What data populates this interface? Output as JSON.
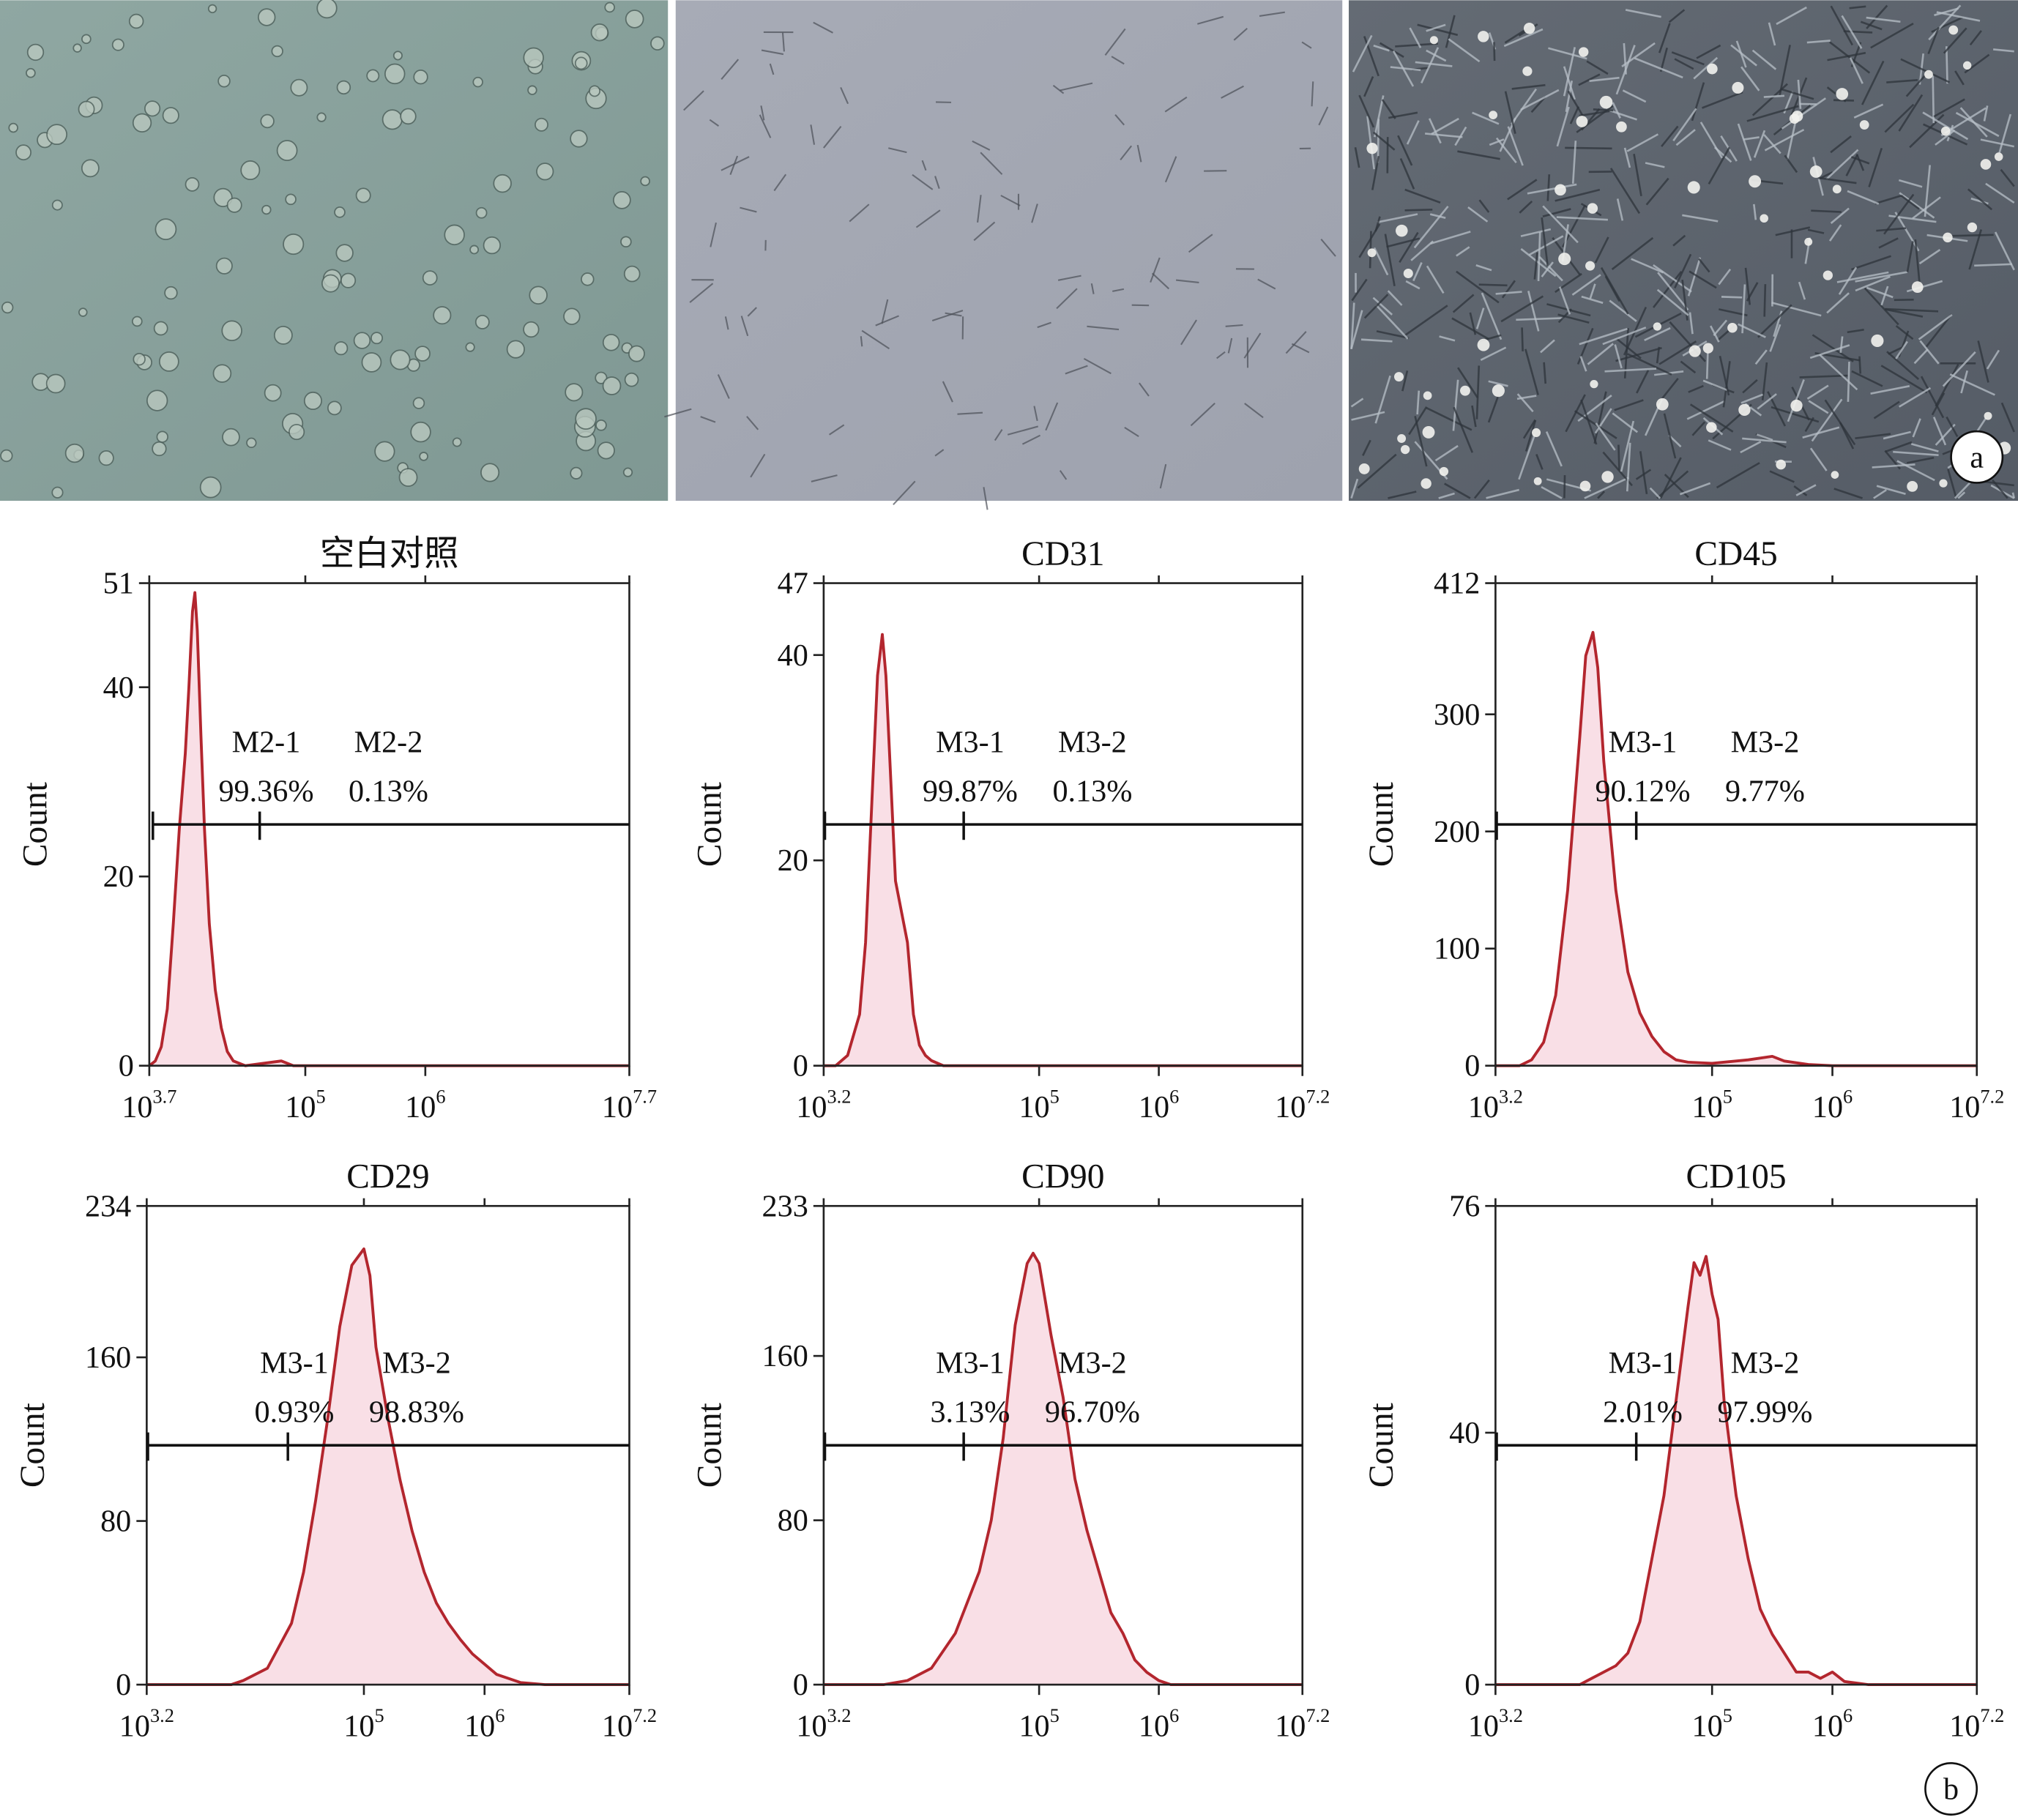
{
  "panel_labels": [
    "a",
    "b"
  ],
  "chart_data": [
    {
      "type": "area",
      "title": "空白对照",
      "ylabel": "Count",
      "color": "#b3262e",
      "fill": "#f9dfe6",
      "xlim": [
        3.7,
        7.7
      ],
      "xticks": [
        {
          "value": 3.7,
          "label": "10",
          "sup": "3.7"
        },
        {
          "value": 5,
          "label": "10",
          "sup": "5"
        },
        {
          "value": 6,
          "label": "10",
          "sup": "6"
        },
        {
          "value": 7.7,
          "label": "10",
          "sup": "7.7"
        }
      ],
      "ylim": [
        0,
        51
      ],
      "yticks": [
        0,
        20,
        40,
        51
      ],
      "x": [
        3.7,
        3.75,
        3.8,
        3.85,
        3.9,
        3.95,
        4.0,
        4.03,
        4.06,
        4.08,
        4.1,
        4.13,
        4.16,
        4.2,
        4.25,
        4.3,
        4.35,
        4.4,
        4.5,
        4.8,
        4.9,
        7.7
      ],
      "values": [
        0,
        0.5,
        2,
        6,
        15,
        25,
        33,
        40,
        48,
        50,
        46,
        35,
        25,
        15,
        8,
        4,
        1.5,
        0.5,
        0,
        0.5,
        0,
        0
      ],
      "gates": [
        {
          "name": "M2-1",
          "value": 99.36,
          "value_label": "99.36%",
          "range": [
            3.73,
            4.62
          ]
        },
        {
          "name": "M2-2",
          "value": 0.13,
          "value_label": "0.13%",
          "range": [
            4.62,
            7.7
          ]
        }
      ]
    },
    {
      "type": "area",
      "title": "CD31",
      "ylabel": "Count",
      "color": "#b3262e",
      "fill": "#f9dfe6",
      "xlim": [
        3.2,
        7.2
      ],
      "xticks": [
        {
          "value": 3.2,
          "label": "10",
          "sup": "3.2"
        },
        {
          "value": 5,
          "label": "10",
          "sup": "5"
        },
        {
          "value": 6,
          "label": "10",
          "sup": "6"
        },
        {
          "value": 7.2,
          "label": "10",
          "sup": "7.2"
        }
      ],
      "ylim": [
        0,
        47
      ],
      "yticks": [
        0,
        20,
        40,
        47
      ],
      "x": [
        3.2,
        3.3,
        3.4,
        3.5,
        3.55,
        3.6,
        3.65,
        3.69,
        3.72,
        3.76,
        3.8,
        3.85,
        3.9,
        3.95,
        4.0,
        4.05,
        4.1,
        4.2,
        7.2
      ],
      "values": [
        0,
        0,
        1,
        5,
        12,
        25,
        38,
        42,
        38,
        28,
        18,
        15,
        12,
        5,
        2,
        1,
        0.5,
        0,
        0
      ],
      "gates": [
        {
          "name": "M3-1",
          "value": 99.87,
          "value_label": "99.87%",
          "range": [
            3.21,
            4.37
          ]
        },
        {
          "name": "M3-2",
          "value": 0.13,
          "value_label": "0.13%",
          "range": [
            4.37,
            7.2
          ]
        }
      ]
    },
    {
      "type": "area",
      "title": "CD45",
      "ylabel": "Count",
      "color": "#b3262e",
      "fill": "#f9dfe6",
      "xlim": [
        3.2,
        7.2
      ],
      "xticks": [
        {
          "value": 3.2,
          "label": "10",
          "sup": "3.2"
        },
        {
          "value": 5,
          "label": "10",
          "sup": "5"
        },
        {
          "value": 6,
          "label": "10",
          "sup": "6"
        },
        {
          "value": 7.2,
          "label": "10",
          "sup": "7.2"
        }
      ],
      "ylim": [
        0,
        412
      ],
      "yticks": [
        0,
        100,
        200,
        300,
        412
      ],
      "x": [
        3.2,
        3.4,
        3.5,
        3.6,
        3.7,
        3.8,
        3.9,
        3.95,
        4.01,
        4.05,
        4.1,
        4.2,
        4.3,
        4.4,
        4.5,
        4.6,
        4.7,
        4.8,
        5.0,
        5.3,
        5.5,
        5.6,
        5.8,
        6.0,
        7.2
      ],
      "values": [
        0,
        0,
        5,
        20,
        60,
        150,
        280,
        350,
        370,
        340,
        260,
        150,
        80,
        45,
        25,
        12,
        5,
        3,
        2,
        5,
        8,
        4,
        1,
        0,
        0
      ],
      "gates": [
        {
          "name": "M3-1",
          "value": 90.12,
          "value_label": "90.12%",
          "range": [
            3.21,
            4.37
          ]
        },
        {
          "name": "M3-2",
          "value": 9.77,
          "value_label": "9.77%",
          "range": [
            4.37,
            7.2
          ]
        }
      ]
    },
    {
      "type": "area",
      "title": "CD29",
      "ylabel": "Count",
      "color": "#b3262e",
      "fill": "#f9dfe6",
      "xlim": [
        3.2,
        7.2
      ],
      "xticks": [
        {
          "value": 3.2,
          "label": "10",
          "sup": "3.2"
        },
        {
          "value": 5,
          "label": "10",
          "sup": "5"
        },
        {
          "value": 6,
          "label": "10",
          "sup": "6"
        },
        {
          "value": 7.2,
          "label": "10",
          "sup": "7.2"
        }
      ],
      "ylim": [
        0,
        234
      ],
      "yticks": [
        0,
        80,
        160,
        234
      ],
      "x": [
        3.2,
        3.9,
        4.0,
        4.2,
        4.4,
        4.5,
        4.6,
        4.7,
        4.8,
        4.9,
        5.0,
        5.05,
        5.1,
        5.2,
        5.3,
        5.4,
        5.5,
        5.6,
        5.7,
        5.8,
        5.9,
        6.0,
        6.1,
        6.2,
        6.3,
        6.5,
        7.2
      ],
      "values": [
        0,
        0,
        2,
        8,
        30,
        55,
        90,
        130,
        175,
        205,
        213,
        200,
        165,
        130,
        100,
        75,
        55,
        40,
        30,
        22,
        15,
        10,
        5,
        3,
        1,
        0,
        0
      ],
      "gates": [
        {
          "name": "M3-1",
          "value": 0.93,
          "value_label": "0.93%",
          "range": [
            3.21,
            4.37
          ]
        },
        {
          "name": "M3-2",
          "value": 98.83,
          "value_label": "98.83%",
          "range": [
            4.37,
            7.2
          ]
        }
      ]
    },
    {
      "type": "area",
      "title": "CD90",
      "ylabel": "Count",
      "color": "#b3262e",
      "fill": "#f9dfe6",
      "xlim": [
        3.2,
        7.2
      ],
      "xticks": [
        {
          "value": 3.2,
          "label": "10",
          "sup": "3.2"
        },
        {
          "value": 5,
          "label": "10",
          "sup": "5"
        },
        {
          "value": 6,
          "label": "10",
          "sup": "6"
        },
        {
          "value": 7.2,
          "label": "10",
          "sup": "7.2"
        }
      ],
      "ylim": [
        0,
        233
      ],
      "yticks": [
        0,
        80,
        160,
        233
      ],
      "x": [
        3.2,
        3.7,
        3.9,
        4.1,
        4.3,
        4.5,
        4.6,
        4.7,
        4.8,
        4.9,
        4.95,
        5.0,
        5.1,
        5.2,
        5.3,
        5.4,
        5.5,
        5.6,
        5.7,
        5.8,
        5.9,
        6.0,
        6.1,
        7.2
      ],
      "values": [
        0,
        0,
        2,
        8,
        25,
        55,
        80,
        120,
        175,
        205,
        210,
        205,
        170,
        140,
        100,
        75,
        55,
        35,
        25,
        12,
        6,
        2,
        0,
        0
      ],
      "gates": [
        {
          "name": "M3-1",
          "value": 3.13,
          "value_label": "3.13%",
          "range": [
            3.21,
            4.37
          ]
        },
        {
          "name": "M3-2",
          "value": 96.7,
          "value_label": "96.70%",
          "range": [
            4.37,
            7.2
          ]
        }
      ]
    },
    {
      "type": "area",
      "title": "CD105",
      "ylabel": "Count",
      "color": "#b3262e",
      "fill": "#f9dfe6",
      "xlim": [
        3.2,
        7.2
      ],
      "xticks": [
        {
          "value": 3.2,
          "label": "10",
          "sup": "3.2"
        },
        {
          "value": 5,
          "label": "10",
          "sup": "5"
        },
        {
          "value": 6,
          "label": "10",
          "sup": "6"
        },
        {
          "value": 7.2,
          "label": "10",
          "sup": "7.2"
        }
      ],
      "ylim": [
        0,
        76
      ],
      "yticks": [
        0,
        40,
        76
      ],
      "x": [
        3.2,
        3.9,
        4.0,
        4.2,
        4.3,
        4.4,
        4.5,
        4.6,
        4.7,
        4.8,
        4.85,
        4.9,
        4.95,
        5.0,
        5.05,
        5.1,
        5.2,
        5.3,
        5.4,
        5.5,
        5.6,
        5.7,
        5.8,
        5.9,
        6.0,
        6.1,
        6.3,
        7.2
      ],
      "values": [
        0,
        0,
        1,
        3,
        5,
        10,
        20,
        30,
        45,
        60,
        67,
        65,
        68,
        62,
        58,
        45,
        30,
        20,
        12,
        8,
        5,
        2,
        2,
        1,
        2,
        0.5,
        0,
        0
      ],
      "gates": [
        {
          "name": "M3-1",
          "value": 2.01,
          "value_label": "2.01%",
          "range": [
            3.21,
            4.37
          ]
        },
        {
          "name": "M3-2",
          "value": 97.99,
          "value_label": "97.99%",
          "range": [
            4.37,
            7.2
          ]
        }
      ]
    }
  ]
}
